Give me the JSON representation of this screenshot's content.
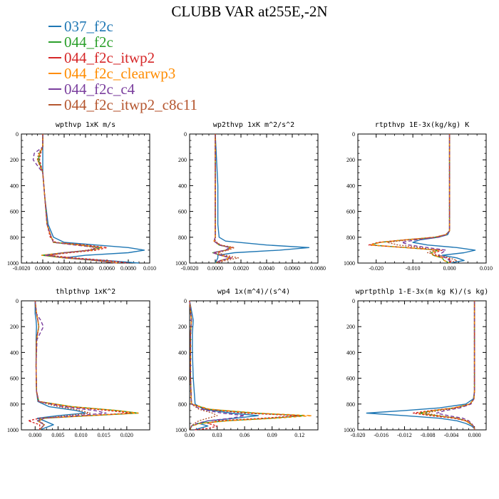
{
  "title": "CLUBB VAR at255E,-2N",
  "legend": [
    {
      "name": "037_f2c",
      "color": "#1f77b4"
    },
    {
      "name": "044_f2c",
      "color": "#2ca02c"
    },
    {
      "name": "044_f2c_itwp2",
      "color": "#d62728"
    },
    {
      "name": "044_f2c_clearwp3",
      "color": "#ff8c00"
    },
    {
      "name": "044_f2c_c4",
      "color": "#7b3f9e"
    },
    {
      "name": "044_f2c_itwp2_c8c11",
      "color": "#b5562f"
    }
  ],
  "chart_data": [
    {
      "type": "line",
      "title": "wpthvp  1xK m/s",
      "xlim": [
        -0.002,
        0.01
      ],
      "ylim": [
        0,
        1000
      ],
      "xticks": [
        "-0.0020",
        "0.0000",
        "0.0020",
        "0.0040",
        "0.0060",
        "0.0080",
        "0.010"
      ],
      "yticks": [
        "0",
        "200",
        "400",
        "600",
        "800",
        "1000"
      ],
      "y": [
        0,
        100,
        150,
        200,
        300,
        500,
        700,
        800,
        840,
        860,
        880,
        900,
        920,
        940,
        960,
        980,
        1000
      ],
      "series": [
        {
          "values": [
            0,
            0,
            0,
            0,
            0,
            0.0002,
            0.0005,
            0.001,
            0.002,
            0.005,
            0.008,
            0.0095,
            0.008,
            0.004,
            0.002,
            0.006,
            0.009
          ]
        },
        {
          "values": [
            0,
            0,
            -0.0003,
            -0.0004,
            0,
            0.0002,
            0.0004,
            0.0008,
            0.001,
            0.0035,
            0.0055,
            0.0045,
            0.002,
            -0.0001,
            0.002,
            0.005,
            0.007
          ]
        },
        {
          "values": [
            0,
            0,
            -0.0002,
            -0.0003,
            0,
            0.0002,
            0.0004,
            0.0007,
            0.0012,
            0.004,
            0.006,
            0.005,
            0.0025,
            0.0005,
            0.003,
            0.006,
            0.008
          ]
        },
        {
          "values": [
            0,
            0,
            -0.0003,
            -0.0005,
            0,
            0.0002,
            0.0004,
            0.0008,
            0.001,
            0.0035,
            0.0055,
            0.0045,
            0.002,
            -0.0001,
            0.002,
            0.005,
            0.007
          ]
        },
        {
          "values": [
            0,
            0,
            -0.0008,
            -0.0009,
            0,
            0.0002,
            0.0004,
            0.0008,
            0.001,
            0.003,
            0.0052,
            0.0044,
            0.002,
            0.0002,
            0.0022,
            0.005,
            0.0068
          ]
        },
        {
          "values": [
            0,
            0,
            -0.0004,
            -0.0005,
            0,
            0.0002,
            0.0004,
            0.0008,
            0.001,
            0.0032,
            0.005,
            0.0042,
            0.0022,
            0.0006,
            0.0025,
            0.005,
            0.007
          ]
        }
      ]
    },
    {
      "type": "line",
      "title": "wp2thvp  1xK m^2/s^2",
      "xlim": [
        -0.002,
        0.008
      ],
      "ylim": [
        0,
        1000
      ],
      "xticks": [
        "-0.0020",
        "0.0000",
        "0.0020",
        "0.0040",
        "0.0060",
        "0.0080"
      ],
      "yticks": [
        "0",
        "200",
        "400",
        "600",
        "800",
        "1000"
      ],
      "y": [
        0,
        400,
        700,
        800,
        830,
        860,
        880,
        900,
        920,
        940,
        960,
        980,
        1000
      ],
      "series": [
        {
          "values": [
            0,
            0.0002,
            0.0002,
            0.0003,
            0.0008,
            0.004,
            0.0073,
            0.005,
            0.0015,
            0.0002,
            0.0002,
            0.0001,
            0
          ]
        },
        {
          "values": [
            0,
            0,
            0,
            0,
            -0.0001,
            0.0003,
            0.0012,
            0.0008,
            -0.0002,
            0.0004,
            0.0012,
            0.0004,
            0
          ]
        },
        {
          "values": [
            0,
            0,
            0,
            0,
            -0.0001,
            0.0004,
            0.0013,
            0.0009,
            -0.0001,
            0.0005,
            0.0013,
            0.0005,
            0
          ]
        },
        {
          "values": [
            0,
            0,
            0,
            0,
            -0.0001,
            0.0003,
            0.0012,
            0.0008,
            -0.0002,
            0.0004,
            0.0012,
            0.0004,
            0
          ]
        },
        {
          "values": [
            0,
            0,
            0,
            0,
            -0.0001,
            0.0003,
            0.0011,
            0.0008,
            -0.0002,
            0.0004,
            0.0012,
            0.0004,
            0
          ]
        },
        {
          "values": [
            0,
            0,
            0,
            0,
            0,
            0.0004,
            0.0015,
            0.001,
            0.0002,
            0.0008,
            0.0018,
            0.0008,
            0.0001
          ]
        }
      ]
    },
    {
      "type": "line",
      "title": "rtpthvp  1E-3x(kg/kg) K",
      "xlim": [
        -0.025,
        0.01
      ],
      "ylim": [
        0,
        1000
      ],
      "xticks": [
        "-0.020",
        "-0.010",
        "0.000",
        "0.010"
      ],
      "yticks": [
        "0",
        "200",
        "400",
        "600",
        "800",
        "1000"
      ],
      "y": [
        0,
        500,
        750,
        780,
        800,
        820,
        840,
        860,
        880,
        900,
        920,
        940,
        960,
        980,
        1000
      ],
      "series": [
        {
          "values": [
            0,
            0,
            0,
            -0.0005,
            -0.003,
            -0.008,
            -0.01,
            -0.006,
            0.002,
            0.007,
            0.004,
            -0.002,
            0.002,
            0.004,
            0
          ]
        },
        {
          "values": [
            0,
            0,
            0,
            -0.001,
            -0.004,
            -0.012,
            -0.019,
            -0.0215,
            -0.012,
            -0.003,
            -0.005,
            -0.0045,
            -0.002,
            -0.0015,
            0
          ]
        },
        {
          "values": [
            0,
            0,
            0,
            -0.001,
            -0.004,
            -0.012,
            -0.0195,
            -0.022,
            -0.012,
            -0.002,
            -0.004,
            -0.004,
            -0.0005,
            0.0005,
            0
          ]
        },
        {
          "values": [
            0,
            0,
            0,
            -0.001,
            -0.004,
            -0.012,
            -0.019,
            -0.0215,
            -0.012,
            -0.003,
            -0.005,
            -0.0045,
            -0.002,
            -0.0015,
            0
          ]
        },
        {
          "values": [
            0,
            0,
            0,
            -0.0008,
            -0.003,
            -0.009,
            -0.013,
            -0.011,
            -0.006,
            -0.001,
            -0.002,
            -0.003,
            -0.001,
            0,
            0
          ]
        },
        {
          "values": [
            0,
            0,
            0,
            -0.001,
            -0.004,
            -0.011,
            -0.017,
            -0.014,
            -0.008,
            -0.004,
            -0.006,
            -0.003,
            0,
            0.002,
            0
          ]
        }
      ]
    },
    {
      "type": "line",
      "title": "thlpthvp  1xK^2",
      "xlim": [
        -0.003,
        0.025
      ],
      "ylim": [
        0,
        1000
      ],
      "xticks": [
        "0.000",
        "0.005",
        "0.010",
        "0.015",
        "0.020"
      ],
      "yticks": [
        "0",
        "200",
        "400",
        "600",
        "800",
        "1000"
      ],
      "y": [
        0,
        100,
        150,
        200,
        300,
        500,
        700,
        780,
        820,
        850,
        870,
        890,
        910,
        930,
        960,
        1000
      ],
      "series": [
        {
          "values": [
            0,
            0,
            0.0002,
            0.0003,
            0.0002,
            0.0002,
            0.0003,
            0.0006,
            0.003,
            0.009,
            0.011,
            0.005,
            0.0005,
            0.002,
            0.004,
            0.001
          ]
        },
        {
          "values": [
            0,
            0.0003,
            0.0006,
            0.0008,
            0.0003,
            0.0002,
            0.0003,
            0.0008,
            0.008,
            0.018,
            0.0225,
            0.012,
            0.002,
            0.0005,
            0.002,
            0.001
          ]
        },
        {
          "values": [
            0,
            0.0003,
            0.0006,
            0.0008,
            0.0003,
            0.0002,
            0.0003,
            0.0008,
            0.007,
            0.016,
            0.021,
            0.011,
            0.001,
            -0.0015,
            0.001,
            0.001
          ]
        },
        {
          "values": [
            0,
            0.0003,
            0.0006,
            0.0008,
            0.0003,
            0.0002,
            0.0003,
            0.0008,
            0.008,
            0.018,
            0.0225,
            0.012,
            0.002,
            0.0005,
            0.002,
            0.001
          ]
        },
        {
          "values": [
            0,
            0.0003,
            0.0012,
            0.0018,
            0.0004,
            0.0002,
            0.0003,
            0.0008,
            0.006,
            0.013,
            0.0155,
            0.009,
            0.002,
            0.0005,
            0.002,
            0.001
          ]
        },
        {
          "values": [
            0,
            0.0003,
            0.0006,
            0.0008,
            0.0003,
            0.0002,
            0.0003,
            0.0007,
            0.005,
            0.01,
            0.012,
            0.007,
            0.002,
            0.001,
            0.002,
            0.001
          ]
        }
      ]
    },
    {
      "type": "line",
      "title": "wp4  1x(m^4)/(s^4)",
      "xlim": [
        0,
        0.14
      ],
      "ylim": [
        0,
        1000
      ],
      "xticks": [
        "0.00",
        "0.03",
        "0.06",
        "0.09",
        "0.12"
      ],
      "yticks": [
        "0",
        "200",
        "400",
        "600",
        "800",
        "1000"
      ],
      "y": [
        0,
        150,
        250,
        400,
        600,
        800,
        840,
        870,
        890,
        910,
        930,
        950,
        970,
        990,
        1000
      ],
      "series": [
        {
          "values": [
            0,
            0.004,
            0.003,
            0.003,
            0.004,
            0.006,
            0.015,
            0.045,
            0.075,
            0.05,
            0.02,
            0.01,
            0.02,
            0.01,
            0.005
          ]
        },
        {
          "values": [
            0,
            0.002,
            0.001,
            0.001,
            0.001,
            0.002,
            0.02,
            0.07,
            0.125,
            0.09,
            0.04,
            0.01,
            0.002,
            0.001,
            0.001
          ]
        },
        {
          "values": [
            0,
            0.002,
            0.001,
            0.001,
            0.001,
            0.002,
            0.018,
            0.06,
            0.12,
            0.08,
            0.03,
            0.02,
            0.03,
            0.02,
            0.005
          ]
        },
        {
          "values": [
            0,
            0.002,
            0.001,
            0.001,
            0.001,
            0.002,
            0.022,
            0.075,
            0.133,
            0.095,
            0.042,
            0.012,
            0.002,
            0.001,
            0.001
          ]
        },
        {
          "values": [
            0,
            0.002,
            0.001,
            0.001,
            0.001,
            0.002,
            0.012,
            0.035,
            0.06,
            0.045,
            0.02,
            0.008,
            0.002,
            0.001,
            0.001
          ]
        },
        {
          "values": [
            0,
            0.002,
            0.001,
            0.001,
            0.001,
            0.002,
            0.01,
            0.025,
            0.03,
            0.02,
            0.01,
            0.005,
            0.002,
            0.001,
            0.001
          ]
        }
      ]
    },
    {
      "type": "line",
      "title": "wprtpthlp  1-E-3x(m kg K)/(s kg)",
      "xlim": [
        -0.02,
        0.002
      ],
      "ylim": [
        0,
        1000
      ],
      "xticks": [
        "-0.020",
        "-0.016",
        "-0.012",
        "-0.008",
        "-0.004",
        "0.000"
      ],
      "yticks": [
        "0",
        "200",
        "400",
        "600",
        "800",
        "1000"
      ],
      "y": [
        0,
        500,
        700,
        760,
        800,
        830,
        850,
        870,
        890,
        910,
        930,
        950,
        970,
        990,
        1000
      ],
      "series": [
        {
          "values": [
            0,
            0,
            0,
            -0.0002,
            -0.0015,
            -0.006,
            -0.012,
            -0.0185,
            -0.012,
            -0.006,
            -0.003,
            -0.0015,
            -0.0005,
            0,
            0
          ]
        },
        {
          "values": [
            0,
            0,
            0,
            -0.0001,
            -0.0008,
            -0.0035,
            -0.007,
            -0.0095,
            -0.0065,
            -0.003,
            -0.0015,
            -0.0008,
            -0.0002,
            0,
            0
          ]
        },
        {
          "values": [
            0,
            0,
            0,
            -0.0001,
            -0.0008,
            -0.0035,
            -0.0075,
            -0.0105,
            -0.0075,
            -0.0035,
            -0.0015,
            -0.0008,
            -0.0002,
            0,
            0
          ]
        },
        {
          "values": [
            0,
            0,
            0,
            -0.0001,
            -0.0008,
            -0.0035,
            -0.007,
            -0.0095,
            -0.0065,
            -0.003,
            -0.0015,
            -0.0008,
            -0.0002,
            0,
            0
          ]
        },
        {
          "values": [
            0,
            0,
            0,
            -0.0001,
            -0.0006,
            -0.0025,
            -0.005,
            -0.0065,
            -0.0045,
            -0.002,
            -0.001,
            -0.0005,
            -0.0002,
            0,
            0
          ]
        },
        {
          "values": [
            0,
            0,
            0,
            -0.0001,
            -0.0007,
            -0.003,
            -0.006,
            -0.0085,
            -0.006,
            -0.003,
            -0.0012,
            -0.0006,
            -0.0002,
            0,
            0
          ]
        }
      ]
    }
  ]
}
